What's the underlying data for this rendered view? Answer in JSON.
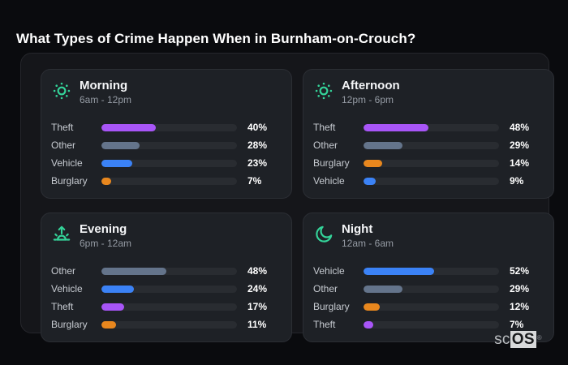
{
  "page_title": "What Types of Crime Happen When in Burnham-on-Crouch?",
  "brand": {
    "prefix": "sc",
    "suffix": "OS",
    "reg": "®"
  },
  "category_colors": {
    "Theft": "#a855f7",
    "Other": "#64748b",
    "Vehicle": "#3b82f6",
    "Burglary": "#e8871e"
  },
  "ui_colors": {
    "accent_icon": "#34d399",
    "bar_track": "#292c31"
  },
  "chart_data": [
    {
      "id": "morning",
      "type": "bar",
      "orientation": "horizontal",
      "icon": "sun-icon",
      "title": "Morning",
      "subtitle": "6am - 12pm",
      "unit": "%",
      "xlim": [
        0,
        100
      ],
      "categories": [
        "Theft",
        "Other",
        "Vehicle",
        "Burglary"
      ],
      "values": [
        40,
        28,
        23,
        7
      ]
    },
    {
      "id": "afternoon",
      "type": "bar",
      "orientation": "horizontal",
      "icon": "sun-icon",
      "title": "Afternoon",
      "subtitle": "12pm - 6pm",
      "unit": "%",
      "xlim": [
        0,
        100
      ],
      "categories": [
        "Theft",
        "Other",
        "Burglary",
        "Vehicle"
      ],
      "values": [
        48,
        29,
        14,
        9
      ]
    },
    {
      "id": "evening",
      "type": "bar",
      "orientation": "horizontal",
      "icon": "sunrise-icon",
      "title": "Evening",
      "subtitle": "6pm - 12am",
      "unit": "%",
      "xlim": [
        0,
        100
      ],
      "categories": [
        "Other",
        "Vehicle",
        "Theft",
        "Burglary"
      ],
      "values": [
        48,
        24,
        17,
        11
      ]
    },
    {
      "id": "night",
      "type": "bar",
      "orientation": "horizontal",
      "icon": "moon-icon",
      "title": "Night",
      "subtitle": "12am - 6am",
      "unit": "%",
      "xlim": [
        0,
        100
      ],
      "categories": [
        "Vehicle",
        "Other",
        "Burglary",
        "Theft"
      ],
      "values": [
        52,
        29,
        12,
        7
      ]
    }
  ]
}
